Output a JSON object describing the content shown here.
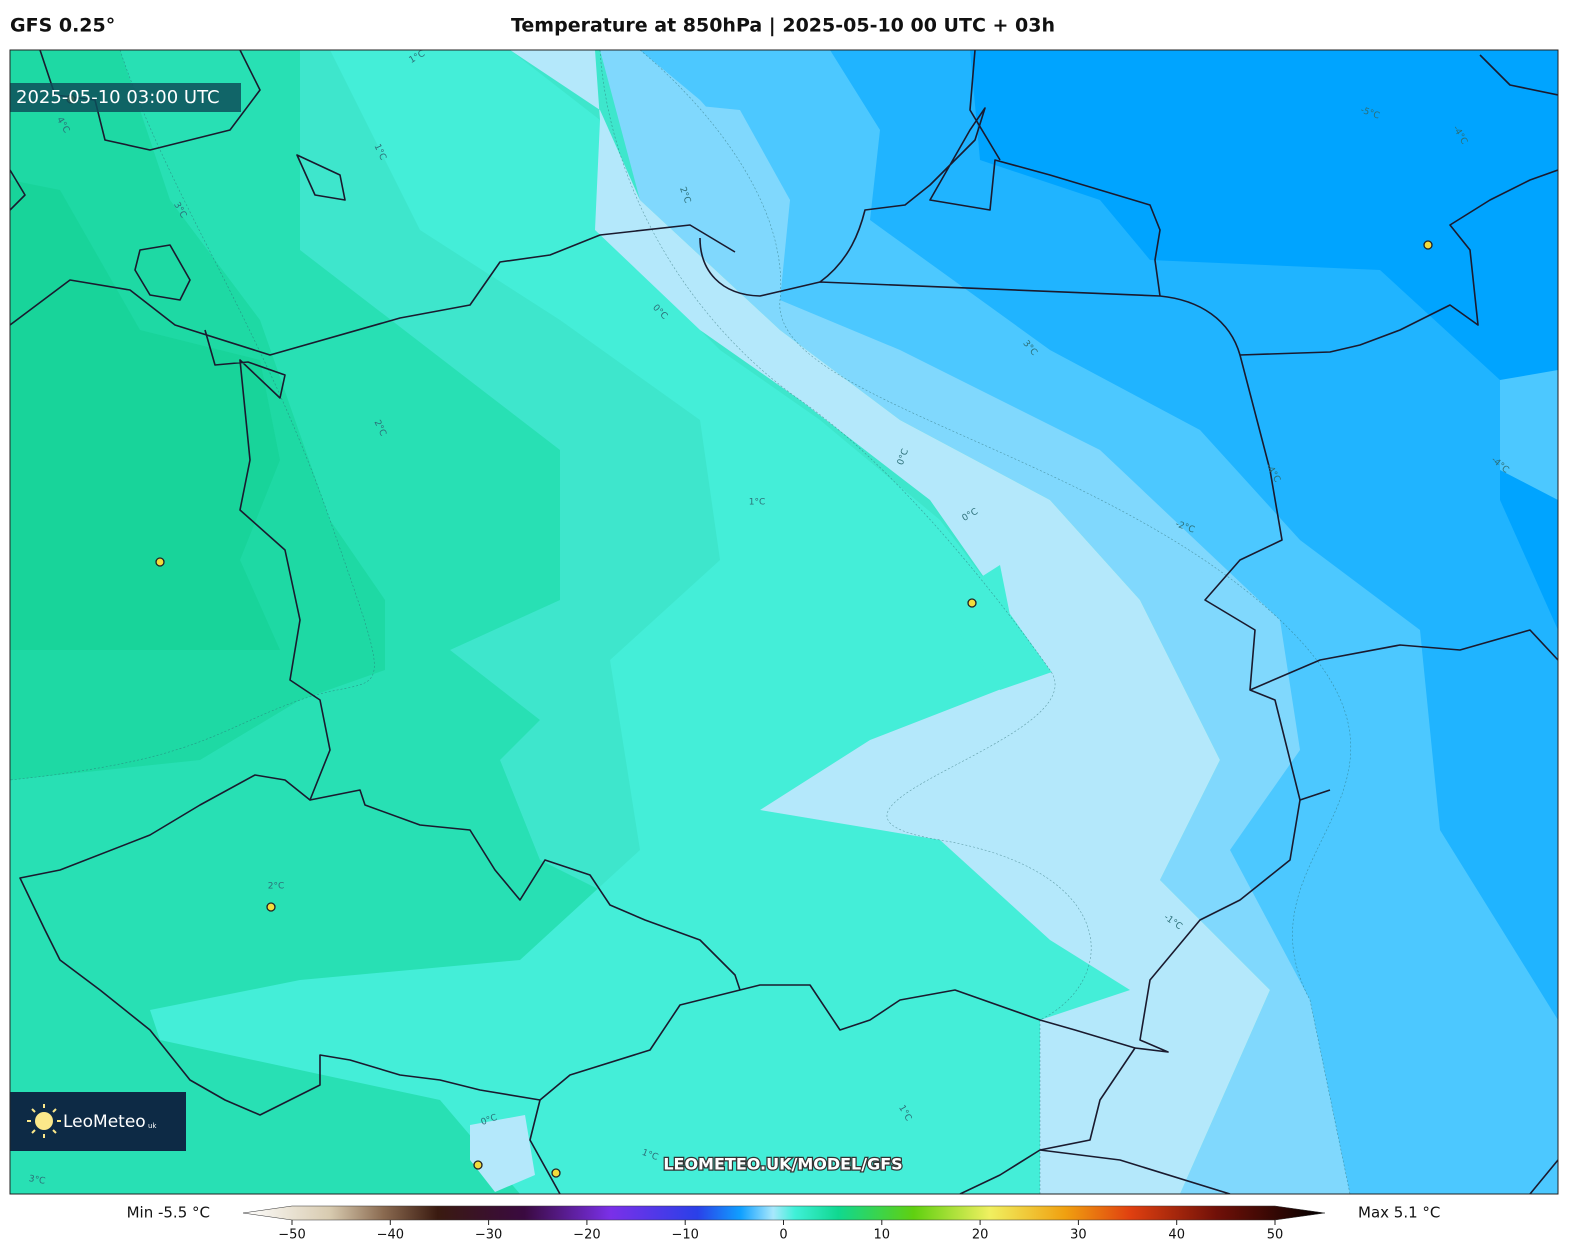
{
  "header": {
    "model": "GFS 0.25°",
    "title": "Temperature at 850hPa | 2025-05-10 00 UTC + 03h"
  },
  "map": {
    "timestamp": "2025-05-10 03:00 UTC",
    "watermark": "LEOMETEO.UK/MODEL/GFS",
    "logo": {
      "name": "LeoMeteo",
      "suffix": "uk"
    },
    "contour_labels": [
      "1°C",
      "1°C",
      "3°C",
      "4°C",
      "2°C",
      "0°C",
      "2°C",
      "1°C",
      "0°C",
      "0°C",
      "3°C",
      "-5°C",
      "-4°C",
      "-2°C",
      "-1°C",
      "2°C",
      "0°C",
      "1°C",
      "1°C",
      "3°C",
      "-4°C",
      "-4°C"
    ]
  },
  "legend": {
    "min": "Min -5.5 °C",
    "max": "Max 5.1 °C",
    "ticks": [
      {
        "value": -50,
        "label": "−50"
      },
      {
        "value": -40,
        "label": "−40"
      },
      {
        "value": -30,
        "label": "−30"
      },
      {
        "value": -20,
        "label": "−20"
      },
      {
        "value": -10,
        "label": "−10"
      },
      0,
      10,
      20,
      30,
      40,
      50
    ]
  }
}
